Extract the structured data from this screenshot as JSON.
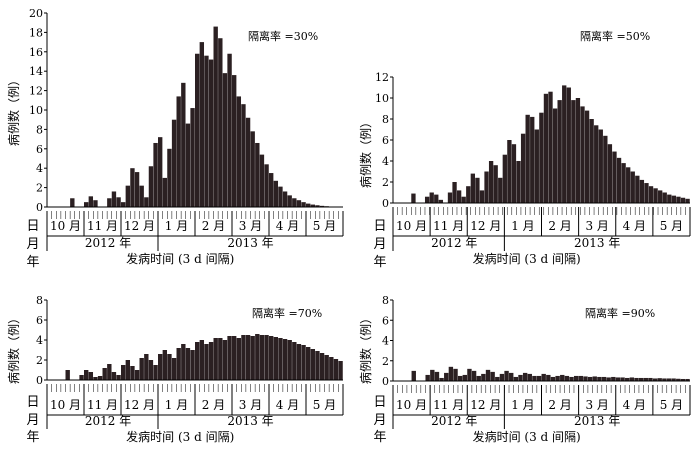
{
  "figure": {
    "month_labels": [
      "10 月",
      "11 月",
      "12 月",
      "1 月",
      "2 月",
      "3 月",
      "4 月",
      "5 月"
    ],
    "year_labels": [
      "2012 年",
      "2013 年"
    ],
    "row_label_day": "日",
    "row_label_month": "月",
    "row_label_year": "年",
    "ylabel": "病例数（例）",
    "xlabel": "发病时间 (3 d 间隔)",
    "bar_color": "#2b2022"
  },
  "chart_data": [
    {
      "type": "bar",
      "title": "隔离率 =30%",
      "ylabel": "病例数（例）",
      "xlabel": "发病时间 (3 d 间隔)",
      "ylim": [
        0,
        20
      ],
      "yticks": [
        0,
        2,
        4,
        6,
        8,
        10,
        12,
        14,
        16,
        18,
        20
      ],
      "values": [
        0,
        0,
        0,
        0,
        0,
        0.9,
        0,
        0,
        0.5,
        1.1,
        0.7,
        0,
        0,
        0.9,
        1.6,
        1.0,
        0.5,
        2.2,
        4.0,
        3.6,
        2.2,
        1.0,
        4.2,
        6.6,
        7.2,
        3.0,
        6.0,
        9.0,
        11.4,
        12.8,
        8.6,
        10.2,
        15.8,
        17.0,
        15.6,
        15.2,
        18.6,
        17.4,
        13.8,
        15.8,
        13.6,
        11.4,
        10.6,
        9.2,
        7.8,
        6.6,
        5.4,
        4.4,
        3.5,
        2.7,
        2.1,
        1.6,
        1.2,
        0.9,
        0.7,
        0.5,
        0.35,
        0.25,
        0.18,
        0.12,
        0.08,
        0.05,
        0.03,
        0.02
      ]
    },
    {
      "type": "bar",
      "title": "隔离率 =50%",
      "ylabel": "病例数（例）",
      "xlabel": "发病时间 (3 d 间隔)",
      "ylim": [
        0,
        12
      ],
      "yticks": [
        0,
        2,
        4,
        6,
        8,
        10,
        12
      ],
      "values": [
        0,
        0,
        0,
        0,
        0.9,
        0,
        0,
        0.6,
        1.0,
        0.8,
        0.3,
        0,
        1.0,
        2.0,
        1.2,
        0.6,
        1.6,
        2.8,
        2.4,
        1.2,
        3.0,
        4.0,
        3.6,
        2.4,
        4.6,
        6.0,
        5.6,
        4.0,
        6.6,
        8.4,
        8.2,
        7.0,
        8.6,
        10.4,
        10.6,
        9.0,
        9.8,
        11.2,
        11.0,
        9.8,
        10.0,
        9.2,
        8.8,
        8.0,
        7.4,
        7.0,
        6.4,
        5.6,
        4.9,
        4.3,
        3.8,
        3.4,
        3.0,
        2.6,
        2.2,
        1.9,
        1.6,
        1.4,
        1.2,
        1.0,
        0.8,
        0.7,
        0.6,
        0.5,
        0.4
      ]
    },
    {
      "type": "bar",
      "title": "隔离率 =70%",
      "ylabel": "病例数（例）",
      "xlabel": "发病时间 (3 d 间隔)",
      "ylim": [
        0,
        8
      ],
      "yticks": [
        0,
        2,
        4,
        6,
        8
      ],
      "values": [
        0,
        0,
        0,
        0,
        1.0,
        0,
        0,
        0.5,
        1.0,
        0.8,
        0.3,
        0.4,
        1.2,
        1.6,
        0.8,
        0.5,
        1.5,
        2.0,
        1.4,
        1.0,
        2.2,
        2.6,
        2.0,
        1.5,
        2.6,
        3.0,
        2.6,
        2.2,
        3.2,
        3.6,
        3.2,
        3.0,
        3.8,
        4.0,
        3.6,
        3.8,
        4.2,
        4.2,
        4.0,
        4.4,
        4.4,
        4.2,
        4.5,
        4.5,
        4.4,
        4.6,
        4.5,
        4.5,
        4.4,
        4.3,
        4.2,
        4.1,
        4.0,
        3.8,
        3.6,
        3.5,
        3.3,
        3.1,
        2.9,
        2.7,
        2.5,
        2.3,
        2.1,
        1.9
      ]
    },
    {
      "type": "bar",
      "title": "隔离率 =90%",
      "ylabel": "病例数（例）",
      "xlabel": "发病时间 (3 d 间隔)",
      "ylim": [
        0,
        8
      ],
      "yticks": [
        0,
        2,
        4,
        6,
        8
      ],
      "values": [
        0,
        0,
        0,
        0,
        1.0,
        0,
        0,
        0.6,
        1.1,
        0.9,
        0.3,
        0.8,
        1.4,
        1.2,
        0.5,
        0.6,
        1.2,
        1.0,
        0.5,
        0.7,
        1.1,
        0.9,
        0.4,
        0.7,
        1.0,
        0.8,
        0.4,
        0.6,
        0.8,
        0.7,
        0.5,
        0.5,
        0.7,
        0.6,
        0.4,
        0.5,
        0.6,
        0.5,
        0.4,
        0.5,
        0.5,
        0.45,
        0.4,
        0.45,
        0.4,
        0.4,
        0.35,
        0.4,
        0.35,
        0.35,
        0.3,
        0.35,
        0.3,
        0.3,
        0.3,
        0.3,
        0.25,
        0.28,
        0.25,
        0.25,
        0.25,
        0.22,
        0.2,
        0.2
      ]
    }
  ]
}
